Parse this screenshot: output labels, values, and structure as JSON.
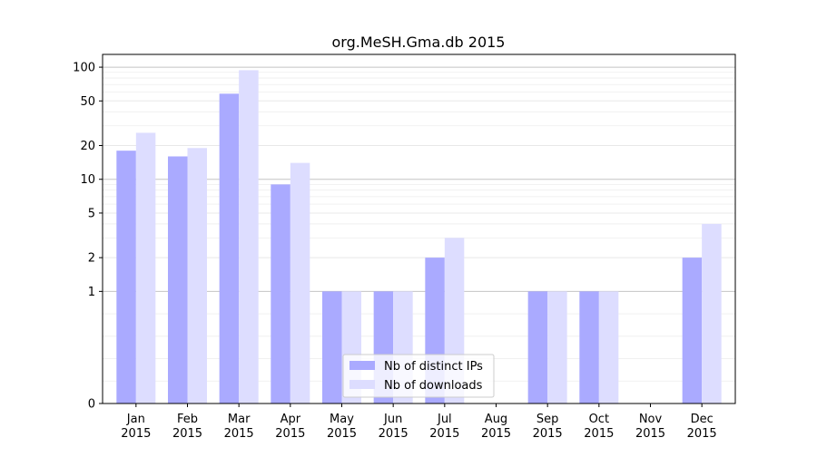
{
  "chart_data": {
    "type": "bar",
    "title": "org.MeSH.Gma.db 2015",
    "xlabel": "",
    "ylabel": "",
    "y_scale": "symlog",
    "ylim": [
      0,
      130
    ],
    "grid": "horizontal",
    "legend_placement": "bottom-center",
    "categories": [
      "Jan\n2015",
      "Feb\n2015",
      "Mar\n2015",
      "Apr\n2015",
      "May\n2015",
      "Jun\n2015",
      "Jul\n2015",
      "Aug\n2015",
      "Sep\n2015",
      "Oct\n2015",
      "Nov\n2015",
      "Dec\n2015"
    ],
    "y_ticks": [
      0,
      1,
      2,
      5,
      10,
      20,
      50,
      100
    ],
    "series": [
      {
        "name": "Nb of distinct IPs",
        "color": "#aaaaff",
        "values": [
          18,
          16,
          58,
          9,
          1,
          1,
          2,
          0,
          1,
          1,
          0,
          2
        ]
      },
      {
        "name": "Nb of downloads",
        "color": "#ddddff",
        "values": [
          26,
          19,
          94,
          14,
          1,
          1,
          3,
          0,
          1,
          1,
          0,
          4
        ]
      }
    ]
  }
}
